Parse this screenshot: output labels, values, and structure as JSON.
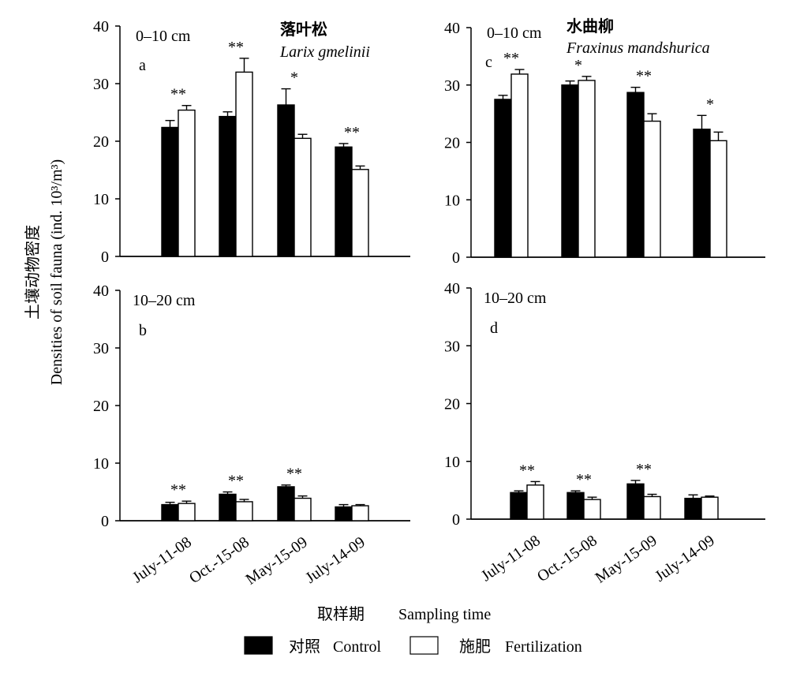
{
  "figure": {
    "y_axis_title_cn": "土壤动物密度",
    "y_axis_title_en": "Densities of soil fauna (ind. 10³/m³)",
    "x_axis_title_cn": "取样期",
    "x_axis_title_en": "Sampling time",
    "legend": [
      {
        "label_cn": "对照",
        "label_en": "Control",
        "fill": "#000000"
      },
      {
        "label_cn": "施肥",
        "label_en": "Fertilization",
        "fill": "#ffffff"
      }
    ]
  },
  "chart_data": [
    {
      "type": "bar",
      "panel": "a",
      "depth": "0–10 cm",
      "species_cn": "落叶松",
      "species_latin": "Larix gmelinii",
      "categories": [
        "July-11-08",
        "Oct.-15-08",
        "May-15-09",
        "July-14-09"
      ],
      "ylim": [
        0,
        40
      ],
      "yticks": [
        0,
        10,
        20,
        30,
        40
      ],
      "series": [
        {
          "name": "Control",
          "values": [
            22.4,
            24.3,
            26.3,
            19.0
          ],
          "errors": [
            1.2,
            0.8,
            2.8,
            0.6
          ]
        },
        {
          "name": "Fertilization",
          "values": [
            25.4,
            32.0,
            20.5,
            15.1
          ],
          "errors": [
            0.8,
            2.4,
            0.7,
            0.6
          ]
        }
      ],
      "significance": [
        "**",
        "**",
        "*",
        "**"
      ],
      "legend_position": "bottom"
    },
    {
      "type": "bar",
      "panel": "c",
      "depth": "0–10 cm",
      "species_cn": "水曲柳",
      "species_latin": "Fraxinus mandshurica",
      "categories": [
        "July-11-08",
        "Oct.-15-08",
        "May-15-09",
        "July-14-09"
      ],
      "ylim": [
        0,
        40
      ],
      "yticks": [
        0,
        10,
        20,
        30,
        40
      ],
      "series": [
        {
          "name": "Control",
          "values": [
            27.5,
            30.0,
            28.7,
            22.3
          ],
          "errors": [
            0.7,
            0.7,
            0.9,
            2.4
          ]
        },
        {
          "name": "Fertilization",
          "values": [
            31.9,
            30.8,
            23.7,
            20.3
          ],
          "errors": [
            0.8,
            0.7,
            1.3,
            1.5
          ]
        }
      ],
      "significance": [
        "**",
        "*",
        "**",
        "*"
      ],
      "legend_position": "bottom"
    },
    {
      "type": "bar",
      "panel": "b",
      "depth": "10–20 cm",
      "categories": [
        "July-11-08",
        "Oct.-15-08",
        "May-15-09",
        "July-14-09"
      ],
      "ylim": [
        0,
        40
      ],
      "yticks": [
        0,
        10,
        20,
        30,
        40
      ],
      "series": [
        {
          "name": "Control",
          "values": [
            2.8,
            4.6,
            5.9,
            2.4
          ],
          "errors": [
            0.4,
            0.4,
            0.3,
            0.4
          ]
        },
        {
          "name": "Fertilization",
          "values": [
            3.0,
            3.3,
            3.9,
            2.6
          ],
          "errors": [
            0.4,
            0.4,
            0.4,
            0.2
          ]
        }
      ],
      "significance": [
        "**",
        "**",
        "**",
        ""
      ],
      "legend_position": "bottom"
    },
    {
      "type": "bar",
      "panel": "d",
      "depth": "10–20 cm",
      "categories": [
        "July-11-08",
        "Oct.-15-08",
        "May-15-09",
        "July-14-09"
      ],
      "ylim": [
        0,
        40
      ],
      "yticks": [
        0,
        10,
        20,
        30,
        40
      ],
      "series": [
        {
          "name": "Control",
          "values": [
            4.6,
            4.6,
            6.1,
            3.6
          ],
          "errors": [
            0.3,
            0.3,
            0.6,
            0.6
          ]
        },
        {
          "name": "Fertilization",
          "values": [
            5.9,
            3.4,
            3.9,
            3.8
          ],
          "errors": [
            0.6,
            0.4,
            0.4,
            0.2
          ]
        }
      ],
      "significance": [
        "**",
        "**",
        "**",
        ""
      ],
      "legend_position": "bottom"
    }
  ]
}
